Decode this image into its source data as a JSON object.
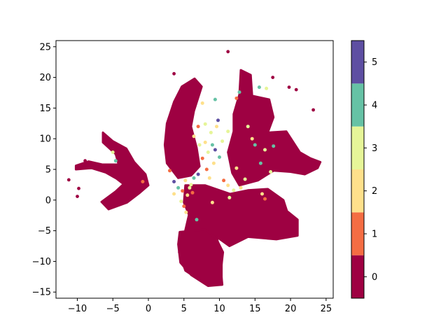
{
  "chart_data": {
    "type": "scatter",
    "title": "",
    "xlabel": "",
    "ylabel": "",
    "xlim": [
      -13,
      26
    ],
    "ylim": [
      -16,
      26
    ],
    "xticks": [
      -10,
      -5,
      0,
      5,
      10,
      15,
      20,
      25
    ],
    "yticks": [
      -15,
      -10,
      -5,
      0,
      5,
      10,
      15,
      20,
      25
    ],
    "grid": false,
    "legend": "none",
    "colorbar": {
      "categories": [
        0,
        1,
        2,
        3,
        4,
        5
      ],
      "tick_labels": [
        "0",
        "1",
        "2",
        "3",
        "4",
        "5"
      ],
      "colors": [
        "#9e0142",
        "#f46d43",
        "#fee08b",
        "#e6f598",
        "#66c2a5",
        "#5e4fa2"
      ]
    },
    "clusters": [
      {
        "category": 0,
        "region": "left-wing",
        "polygon": [
          [
            -10.2,
            5
          ],
          [
            -8,
            5.2
          ],
          [
            -6,
            4.5
          ],
          [
            -4.5,
            3.5
          ],
          [
            -3.5,
            2.6
          ],
          [
            -4.6,
            1.4
          ],
          [
            -6.6,
            -0.3
          ],
          [
            -5.6,
            -1.5
          ],
          [
            -3,
            -0.4
          ],
          [
            -1.2,
            1.2
          ],
          [
            0,
            2.4
          ],
          [
            -0.4,
            4.2
          ],
          [
            -2,
            6.2
          ],
          [
            -3.1,
            8.4
          ],
          [
            -5,
            9.6
          ],
          [
            -6.4,
            11
          ],
          [
            -6.4,
            9.4
          ],
          [
            -4.6,
            7.5
          ],
          [
            -4.2,
            5.8
          ],
          [
            -6.5,
            5.8
          ],
          [
            -8.4,
            6.3
          ],
          [
            -10.2,
            5.6
          ]
        ]
      },
      {
        "category": 0,
        "region": "center-column",
        "polygon": [
          [
            4.7,
            18.5
          ],
          [
            6.5,
            19.8
          ],
          [
            7.5,
            18.5
          ],
          [
            6.4,
            14.5
          ],
          [
            6,
            12
          ],
          [
            6.8,
            8.5
          ],
          [
            7.2,
            5.5
          ],
          [
            6,
            4
          ],
          [
            4.2,
            3.6
          ],
          [
            2.6,
            6
          ],
          [
            2.3,
            9
          ],
          [
            2.6,
            12.5
          ],
          [
            3.6,
            16
          ]
        ]
      },
      {
        "category": 0,
        "region": "right-wing",
        "polygon": [
          [
            13,
            21.2
          ],
          [
            14.4,
            20.4
          ],
          [
            14.6,
            17
          ],
          [
            17,
            16.4
          ],
          [
            17.6,
            13.5
          ],
          [
            16.8,
            11
          ],
          [
            19.4,
            11.2
          ],
          [
            21.3,
            7.8
          ],
          [
            22.8,
            6.8
          ],
          [
            24.2,
            6.2
          ],
          [
            23.8,
            5.2
          ],
          [
            22,
            4.2
          ],
          [
            20,
            4.6
          ],
          [
            17.6,
            4.8
          ],
          [
            15.4,
            3.2
          ],
          [
            12.8,
            2.4
          ],
          [
            11.8,
            4.4
          ],
          [
            11.2,
            7.8
          ],
          [
            12,
            11.2
          ],
          [
            12,
            14
          ],
          [
            12.8,
            17.2
          ]
        ]
      },
      {
        "category": 0,
        "region": "lower-body",
        "polygon": [
          [
            5.2,
            2.4
          ],
          [
            8,
            2.4
          ],
          [
            11.5,
            1
          ],
          [
            14,
            1.6
          ],
          [
            16.8,
            1.8
          ],
          [
            19,
            0
          ],
          [
            19.5,
            -1.8
          ],
          [
            21,
            -3.2
          ],
          [
            21,
            -5.8
          ],
          [
            18,
            -6.4
          ],
          [
            14,
            -6
          ],
          [
            11.4,
            -7.5
          ],
          [
            9.6,
            -6
          ],
          [
            10.3,
            -9.5
          ],
          [
            10.3,
            -13.8
          ],
          [
            8.2,
            -13.8
          ],
          [
            5.2,
            -11.5
          ],
          [
            4.3,
            -8.5
          ],
          [
            5.1,
            -5.4
          ],
          [
            5.7,
            -2.4
          ],
          [
            5,
            -0.4
          ]
        ]
      },
      {
        "category": 0,
        "region": "bottom-lobe",
        "polygon": [
          [
            4.4,
            -5.2
          ],
          [
            8,
            -4.8
          ],
          [
            9.5,
            -6.2
          ],
          [
            10.5,
            -8.5
          ],
          [
            10.2,
            -11.5
          ],
          [
            10.4,
            -13.8
          ],
          [
            8.4,
            -14
          ],
          [
            6,
            -12.2
          ],
          [
            4.5,
            -10.2
          ],
          [
            4.2,
            -7.2
          ]
        ]
      }
    ],
    "outlier_points": [
      {
        "x": -11.2,
        "y": 3.3,
        "category": 0
      },
      {
        "x": -9.8,
        "y": 1.9,
        "category": 0
      },
      {
        "x": -10.0,
        "y": 0.6,
        "category": 0
      },
      {
        "x": -8.9,
        "y": 6.4,
        "category": 0
      },
      {
        "x": 11.2,
        "y": 24.2,
        "category": 0
      },
      {
        "x": 17.5,
        "y": 20.0,
        "category": 0
      },
      {
        "x": 19.8,
        "y": 18.4,
        "category": 0
      },
      {
        "x": 20.8,
        "y": 18.0,
        "category": 0
      },
      {
        "x": 23.2,
        "y": 14.7,
        "category": 0
      },
      {
        "x": 3.6,
        "y": 20.6,
        "category": 0
      }
    ],
    "mixed_points": [
      {
        "x": 5.2,
        "y": 3.2,
        "category": 2
      },
      {
        "x": 6.0,
        "y": 2.5,
        "category": 3
      },
      {
        "x": 4.8,
        "y": 1.5,
        "category": 1
      },
      {
        "x": 5.5,
        "y": 0.8,
        "category": 2
      },
      {
        "x": 4.2,
        "y": 2.0,
        "category": 4
      },
      {
        "x": 3.6,
        "y": 3.0,
        "category": 5
      },
      {
        "x": 6.4,
        "y": 3.6,
        "category": 4
      },
      {
        "x": 5.0,
        "y": -1.0,
        "category": 1
      },
      {
        "x": 5.3,
        "y": -2.0,
        "category": 2
      },
      {
        "x": 5.8,
        "y": 2.0,
        "category": 3
      },
      {
        "x": 4.6,
        "y": -0.2,
        "category": 3
      },
      {
        "x": 6.2,
        "y": 1.2,
        "category": 1
      },
      {
        "x": 7.2,
        "y": 9.0,
        "category": 3
      },
      {
        "x": 8.0,
        "y": 9.4,
        "category": 2
      },
      {
        "x": 9.0,
        "y": 9.0,
        "category": 4
      },
      {
        "x": 8.4,
        "y": 7.8,
        "category": 3
      },
      {
        "x": 7.6,
        "y": 6.8,
        "category": 1
      },
      {
        "x": 8.8,
        "y": 11.0,
        "category": 3
      },
      {
        "x": 9.6,
        "y": 12.0,
        "category": 2
      },
      {
        "x": 8.0,
        "y": 12.4,
        "category": 3
      },
      {
        "x": 7.6,
        "y": 15.8,
        "category": 2
      },
      {
        "x": 9.4,
        "y": 16.4,
        "category": 4
      },
      {
        "x": 9.8,
        "y": 13.0,
        "category": 5
      },
      {
        "x": 7.0,
        "y": 12.0,
        "category": 1
      },
      {
        "x": 10.4,
        "y": 9.6,
        "category": 3
      },
      {
        "x": 10.0,
        "y": 7.0,
        "category": 4
      },
      {
        "x": 9.2,
        "y": 6.0,
        "category": 2
      },
      {
        "x": 8.2,
        "y": 5.0,
        "category": 1
      },
      {
        "x": 10.6,
        "y": 3.2,
        "category": 1
      },
      {
        "x": 11.2,
        "y": 2.4,
        "category": 2
      },
      {
        "x": 12.0,
        "y": 1.6,
        "category": 3
      },
      {
        "x": 13.0,
        "y": 2.0,
        "category": 2
      },
      {
        "x": 13.6,
        "y": 3.4,
        "category": 3
      },
      {
        "x": 12.4,
        "y": 16.6,
        "category": 1
      },
      {
        "x": 12.8,
        "y": 17.6,
        "category": 4
      },
      {
        "x": 15.6,
        "y": 18.4,
        "category": 4
      },
      {
        "x": 16.6,
        "y": 18.2,
        "category": 3
      },
      {
        "x": 15.0,
        "y": 9.0,
        "category": 4
      },
      {
        "x": 14.6,
        "y": 10.0,
        "category": 2
      },
      {
        "x": 16.4,
        "y": 8.2,
        "category": 3
      },
      {
        "x": 15.8,
        "y": 6.0,
        "category": 4
      },
      {
        "x": 17.2,
        "y": 4.6,
        "category": 3
      },
      {
        "x": 16.0,
        "y": 1.0,
        "category": 2
      },
      {
        "x": 16.4,
        "y": 0.2,
        "category": 1
      },
      {
        "x": 11.4,
        "y": 0.4,
        "category": 3
      },
      {
        "x": 9.0,
        "y": -0.4,
        "category": 2
      },
      {
        "x": 6.8,
        "y": -3.2,
        "category": 4
      },
      {
        "x": 7.0,
        "y": 4.2,
        "category": 5
      },
      {
        "x": 8.6,
        "y": 3.6,
        "category": 2
      },
      {
        "x": 9.4,
        "y": 8.2,
        "category": 5
      },
      {
        "x": 11.2,
        "y": 11.2,
        "category": 3
      },
      {
        "x": 6.4,
        "y": 10.4,
        "category": 2
      },
      {
        "x": 3.0,
        "y": 4.8,
        "category": 1
      },
      {
        "x": 3.6,
        "y": 1.0,
        "category": 2
      },
      {
        "x": -0.8,
        "y": 3.0,
        "category": 1
      },
      {
        "x": -4.6,
        "y": 6.4,
        "category": 4
      },
      {
        "x": -5.0,
        "y": 7.8,
        "category": 3
      },
      {
        "x": 12.4,
        "y": 5.2,
        "category": 2
      },
      {
        "x": 14.0,
        "y": 12.0,
        "category": 3
      },
      {
        "x": 17.6,
        "y": 8.8,
        "category": 4
      }
    ]
  }
}
